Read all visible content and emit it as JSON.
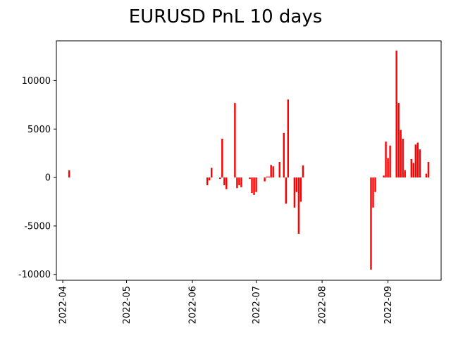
{
  "chart_data": {
    "type": "bar",
    "title": "EURUSD PnL 10 days",
    "xlabel": "",
    "ylabel": "",
    "color": "#ff0000",
    "grid": false,
    "legend": "none",
    "xlim": [
      "2022-03-29",
      "2022-09-26"
    ],
    "ylim": [
      -10600,
      14100
    ],
    "y_ticks": [
      -10000,
      -5000,
      0,
      5000,
      10000
    ],
    "x_ticks": [
      "2022-04",
      "2022-05",
      "2022-06",
      "2022-07",
      "2022-08",
      "2022-09"
    ],
    "series": [
      {
        "points": [
          {
            "date": "2022-04-04",
            "value": 750
          },
          {
            "date": "2022-06-08",
            "value": -800
          },
          {
            "date": "2022-06-09",
            "value": -300
          },
          {
            "date": "2022-06-10",
            "value": 1000
          },
          {
            "date": "2022-06-14",
            "value": -150
          },
          {
            "date": "2022-06-15",
            "value": 4000
          },
          {
            "date": "2022-06-16",
            "value": -800
          },
          {
            "date": "2022-06-17",
            "value": -1200
          },
          {
            "date": "2022-06-21",
            "value": 7700
          },
          {
            "date": "2022-06-22",
            "value": -1100
          },
          {
            "date": "2022-06-23",
            "value": -800
          },
          {
            "date": "2022-06-24",
            "value": -1000
          },
          {
            "date": "2022-06-28",
            "value": -150
          },
          {
            "date": "2022-06-29",
            "value": -1600
          },
          {
            "date": "2022-06-30",
            "value": -1800
          },
          {
            "date": "2022-07-01",
            "value": -1500
          },
          {
            "date": "2022-07-05",
            "value": -400
          },
          {
            "date": "2022-07-06",
            "value": 100
          },
          {
            "date": "2022-07-07",
            "value": 100
          },
          {
            "date": "2022-07-08",
            "value": 1300
          },
          {
            "date": "2022-07-09",
            "value": 1150
          },
          {
            "date": "2022-07-12",
            "value": 1600
          },
          {
            "date": "2022-07-14",
            "value": 4600
          },
          {
            "date": "2022-07-15",
            "value": -2700
          },
          {
            "date": "2022-07-16",
            "value": 8050
          },
          {
            "date": "2022-07-19",
            "value": -3100
          },
          {
            "date": "2022-07-20",
            "value": -1500
          },
          {
            "date": "2022-07-21",
            "value": -5800
          },
          {
            "date": "2022-07-22",
            "value": -2500
          },
          {
            "date": "2022-07-23",
            "value": 1250
          },
          {
            "date": "2022-08-24",
            "value": -9500
          },
          {
            "date": "2022-08-25",
            "value": -3100
          },
          {
            "date": "2022-08-26",
            "value": -1500
          },
          {
            "date": "2022-08-30",
            "value": 200
          },
          {
            "date": "2022-08-31",
            "value": 3700
          },
          {
            "date": "2022-09-01",
            "value": 2000
          },
          {
            "date": "2022-09-02",
            "value": 3300
          },
          {
            "date": "2022-09-05",
            "value": 13100
          },
          {
            "date": "2022-09-06",
            "value": 7700
          },
          {
            "date": "2022-09-07",
            "value": 4900
          },
          {
            "date": "2022-09-08",
            "value": 4000
          },
          {
            "date": "2022-09-09",
            "value": 750
          },
          {
            "date": "2022-09-12",
            "value": 1900
          },
          {
            "date": "2022-09-13",
            "value": 1500
          },
          {
            "date": "2022-09-14",
            "value": 3400
          },
          {
            "date": "2022-09-15",
            "value": 3600
          },
          {
            "date": "2022-09-16",
            "value": 2900
          },
          {
            "date": "2022-09-19",
            "value": 400
          },
          {
            "date": "2022-09-20",
            "value": 1600
          }
        ]
      }
    ]
  }
}
